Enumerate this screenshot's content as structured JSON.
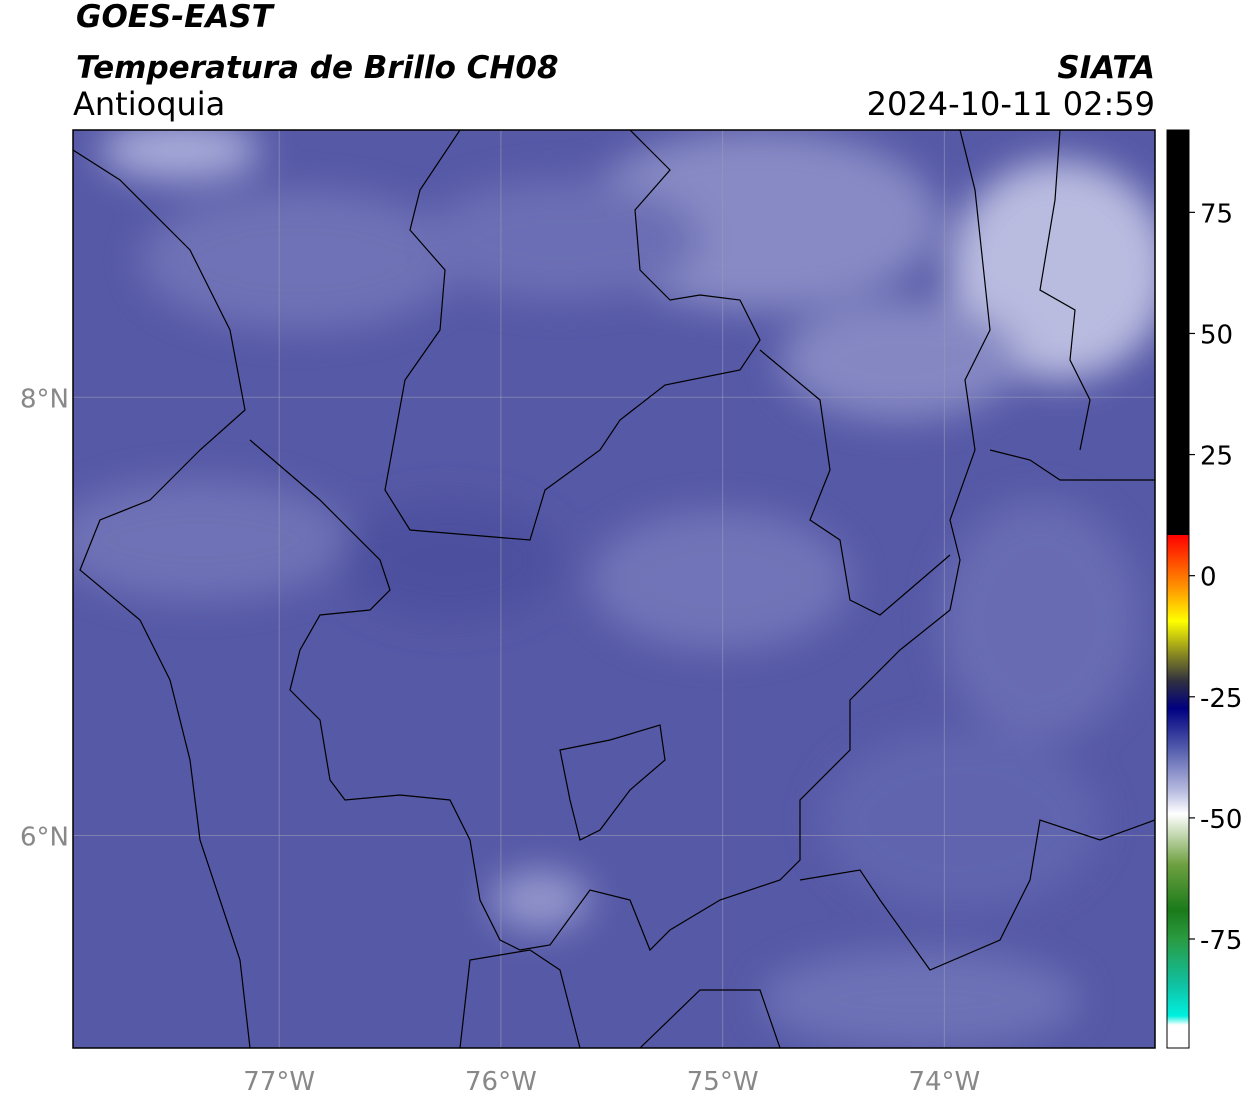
{
  "header": {
    "title": "GOES-EAST",
    "subtitle": "Temperatura de Brillo CH08",
    "region": "Antioquia",
    "agency": "SIATA",
    "timestamp": "2024-10-11 02:59"
  },
  "map": {
    "xlim": [
      -77.93,
      -73.05
    ],
    "ylim": [
      5.03,
      9.22
    ],
    "xticks": [
      {
        "value": -77,
        "label": "77°W"
      },
      {
        "value": -76,
        "label": "76°W"
      },
      {
        "value": -75,
        "label": "75°W"
      },
      {
        "value": -74,
        "label": "74°W"
      }
    ],
    "yticks": [
      {
        "value": 8,
        "label": "8°N"
      },
      {
        "value": 6,
        "label": "6°N"
      }
    ],
    "grid": true
  },
  "colorbar": {
    "lim": [
      -97.5,
      92
    ],
    "ticks": [
      75,
      50,
      25,
      0,
      -25,
      -50,
      -75
    ]
  }
}
